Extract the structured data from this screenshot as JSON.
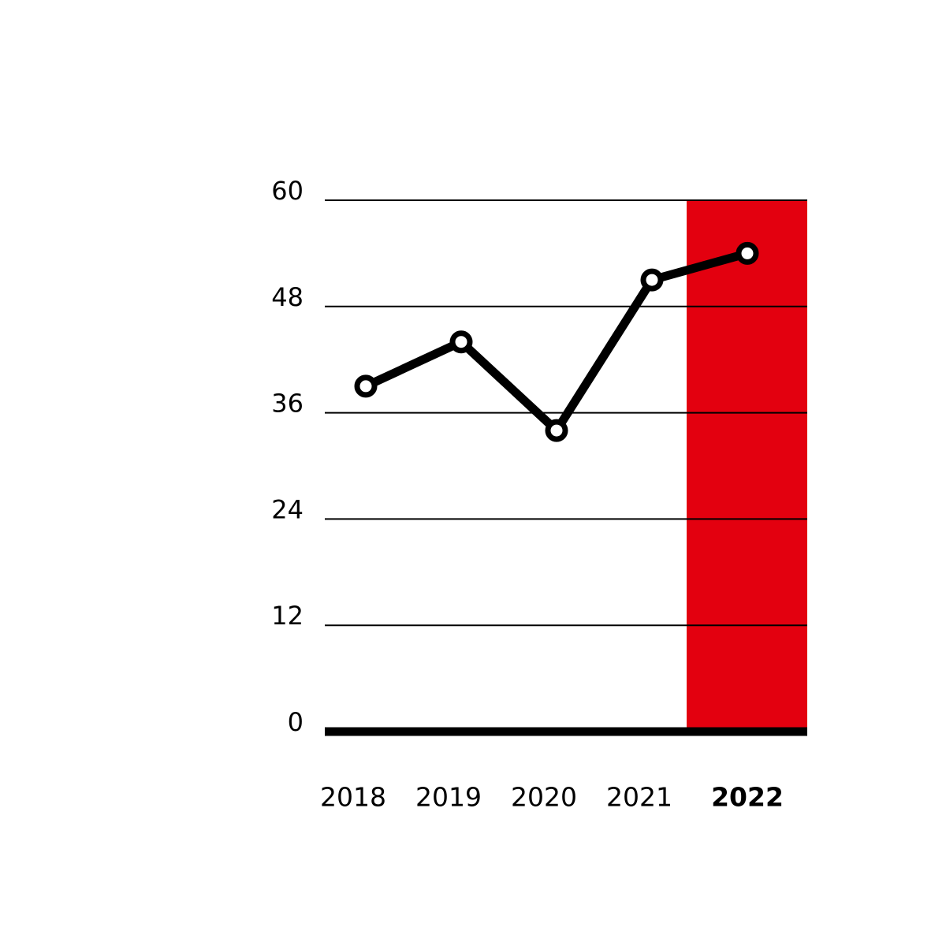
{
  "chart_data": {
    "type": "line",
    "categories": [
      "2018",
      "2019",
      "2020",
      "2021",
      "2022"
    ],
    "values": [
      39,
      44,
      34,
      51,
      54
    ],
    "color": "#000000",
    "highlight_index": 4,
    "highlight_color": "#e3000f",
    "ylim": [
      0,
      60
    ],
    "yticks": [
      0,
      12,
      24,
      36,
      48,
      60
    ],
    "grid": true
  }
}
